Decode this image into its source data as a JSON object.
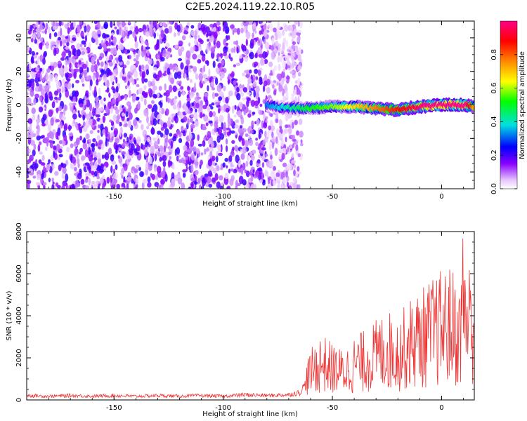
{
  "figure_title": "C2E5.2024.119.22.10.R05",
  "chart_data": [
    {
      "type": "heatmap",
      "xlabel": "Height of straight line (km)",
      "ylabel": "Frequency (Hz)",
      "xlim": [
        -190,
        15
      ],
      "ylim": [
        -50,
        50
      ],
      "x_ticks": [
        -150,
        -100,
        -50,
        0
      ],
      "x_tick_labels": [
        "-150",
        "-100",
        "-50",
        "0"
      ],
      "y_ticks": [
        -40,
        -20,
        0,
        20,
        40
      ],
      "y_tick_labels": [
        "-40",
        "-20",
        "0",
        "20",
        "40"
      ],
      "noise_region": {
        "x_range": [
          -190,
          -70
        ],
        "freq_range": [
          -50,
          50
        ]
      },
      "signal_ridge": [
        {
          "x": -80,
          "freq": 0,
          "amplitude": 0.2
        },
        {
          "x": -70,
          "freq": -2,
          "amplitude": 0.3
        },
        {
          "x": -60,
          "freq": -2,
          "amplitude": 0.4
        },
        {
          "x": -50,
          "freq": -1,
          "amplitude": 0.45
        },
        {
          "x": -40,
          "freq": -1,
          "amplitude": 0.55
        },
        {
          "x": -30,
          "freq": -2,
          "amplitude": 0.65
        },
        {
          "x": -20,
          "freq": -3,
          "amplitude": 0.75
        },
        {
          "x": -10,
          "freq": -1,
          "amplitude": 0.85
        },
        {
          "x": 0,
          "freq": 0,
          "amplitude": 0.95
        },
        {
          "x": 10,
          "freq": 0,
          "amplitude": 1.0
        },
        {
          "x": 15,
          "freq": -1,
          "amplitude": 0.6
        }
      ],
      "colorbar": {
        "label": "Normalized spectral amplitude",
        "range": [
          0,
          1
        ],
        "ticks": [
          0.0,
          0.2,
          0.4,
          0.6,
          0.8
        ],
        "tick_labels": [
          "0.0",
          "0.2",
          "0.4",
          "0.6",
          "0.8"
        ],
        "colormap": [
          "#ffffff",
          "#e8c8ff",
          "#8800ff",
          "#0000ff",
          "#00e0e0",
          "#00ff00",
          "#ffff00",
          "#ff8800",
          "#ff0000",
          "#ff0088"
        ]
      }
    },
    {
      "type": "line",
      "xlabel": "Height of straight line (km)",
      "ylabel": "SNR (10 * v/v)",
      "xlim": [
        -190,
        15
      ],
      "ylim": [
        0,
        8000
      ],
      "x_ticks": [
        -150,
        -100,
        -50,
        0
      ],
      "x_tick_labels": [
        "-150",
        "-100",
        "-50",
        "0"
      ],
      "y_ticks": [
        0,
        2000,
        4000,
        6000,
        8000
      ],
      "y_tick_labels": [
        "0",
        "2000",
        "4000",
        "6000",
        "8000"
      ],
      "color": "#ee3333",
      "x": [
        -190,
        -180,
        -170,
        -160,
        -150,
        -140,
        -130,
        -120,
        -110,
        -100,
        -90,
        -80,
        -70,
        -65,
        -60,
        -55,
        -50,
        -45,
        -40,
        -35,
        -30,
        -25,
        -20,
        -15,
        -10,
        -5,
        0,
        5,
        8,
        10,
        12,
        15
      ],
      "values": [
        300,
        250,
        300,
        250,
        300,
        250,
        300,
        250,
        300,
        250,
        350,
        300,
        350,
        500,
        1500,
        2000,
        1700,
        1500,
        1900,
        2100,
        2400,
        2700,
        2500,
        3000,
        3300,
        3600,
        3900,
        4000,
        3300,
        5500,
        4200,
        4300
      ]
    }
  ]
}
